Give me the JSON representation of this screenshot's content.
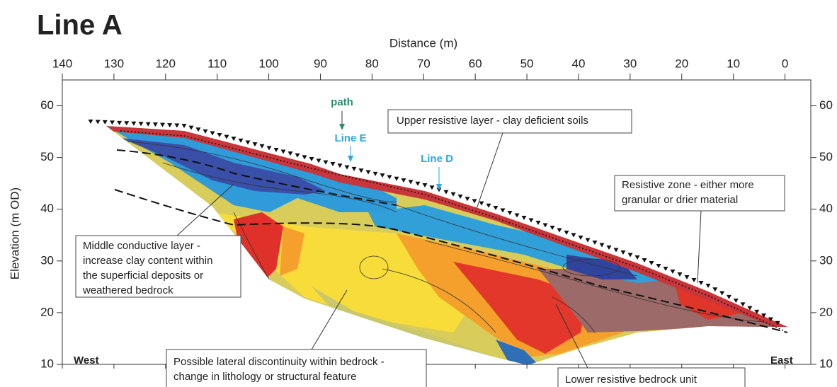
{
  "chart_data": {
    "type": "section",
    "title": "Line A",
    "x_label": "Distance (m)",
    "y_label": "Elevation (m OD)",
    "xlim": [
      140,
      -5
    ],
    "ylim": [
      10,
      65
    ],
    "xticks": [
      140,
      130,
      120,
      110,
      100,
      90,
      80,
      70,
      60,
      50,
      40,
      30,
      20,
      10,
      0
    ],
    "yticks": [
      10,
      20,
      30,
      40,
      50,
      60
    ],
    "left_label": "West",
    "right_label": "East",
    "annotations": [
      {
        "lines": [
          "path"
        ]
      },
      {
        "lines": [
          "Line E"
        ]
      },
      {
        "lines": [
          "Line D"
        ]
      },
      {
        "lines": [
          "Upper resistive layer - clay deficient soils"
        ]
      },
      {
        "lines": [
          "Resistive zone - either more",
          "granular or drier material"
        ]
      },
      {
        "lines": [
          "Middle conductive layer -",
          "increase clay content within",
          "the superficial deposits or",
          "weathered bedrock"
        ]
      },
      {
        "lines": [
          "Possible lateral discontinuity within bedrock -",
          "change in lithology or structural feature"
        ]
      },
      {
        "lines": [
          "Lower resistive bedrock unit"
        ]
      }
    ]
  }
}
